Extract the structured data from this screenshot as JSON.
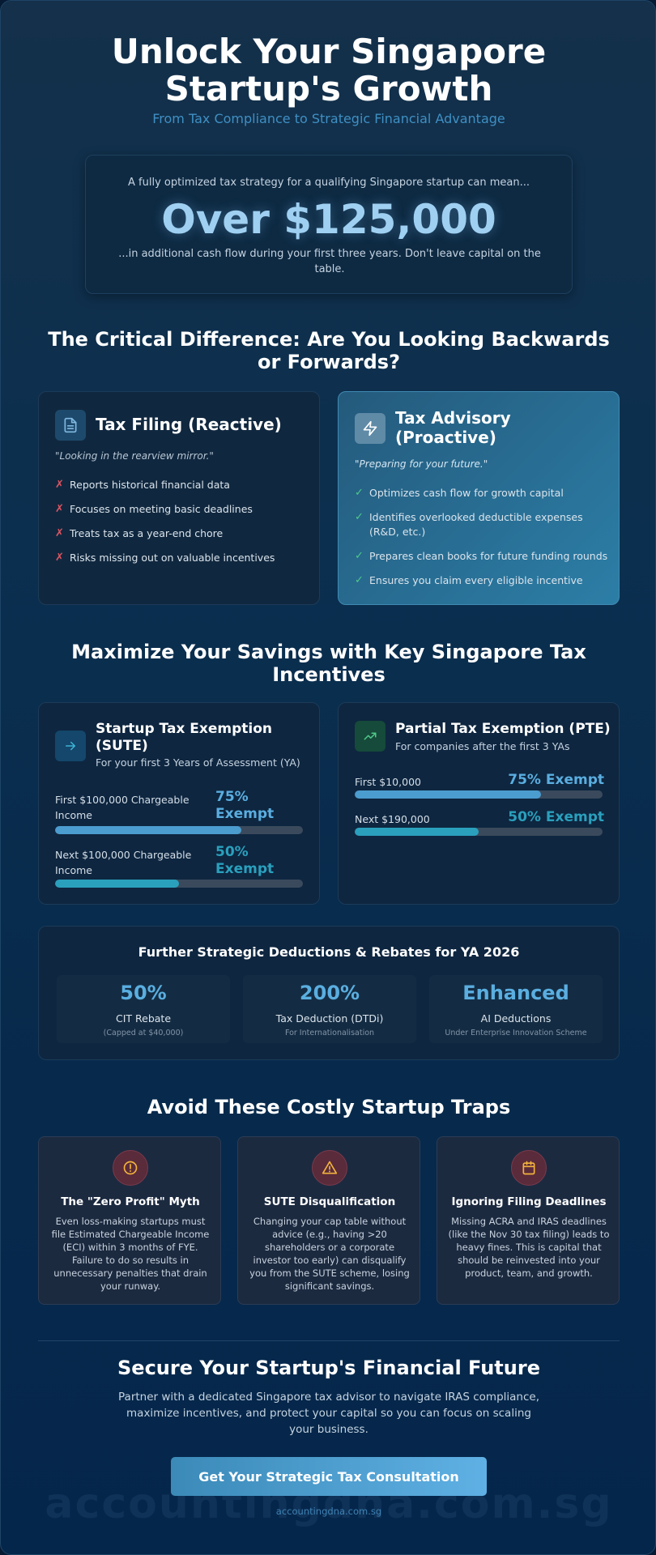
{
  "hero": {
    "title": "Unlock Your Singapore Startup's Growth",
    "subtitle": "From Tax Compliance to Strategic Financial Advantage"
  },
  "stat": {
    "intro": "A fully optimized tax strategy for a qualifying Singapore startup can mean...",
    "value": "Over $125,000",
    "outro": "...in additional cash flow during your first three years. Don't leave capital on the table."
  },
  "comparison": {
    "title": "The Critical Difference: Are You Looking Backwards or Forwards?",
    "filing": {
      "icon": "document-icon",
      "title": "Tax Filing (Reactive)",
      "quote": "\"Looking in the rearview mirror.\"",
      "items": [
        "Reports historical financial data",
        "Focuses on meeting basic deadlines",
        "Treats tax as a year-end chore",
        "Risks missing out on valuable incentives"
      ]
    },
    "advisory": {
      "icon": "lightning-icon",
      "title": "Tax Advisory (Proactive)",
      "quote": "\"Preparing for your future.\"",
      "items": [
        "Optimizes cash flow for growth capital",
        "Identifies overlooked deductible expenses (R&D, etc.)",
        "Prepares clean books for future funding rounds",
        "Ensures you claim every eligible incentive"
      ]
    }
  },
  "incentives": {
    "title": "Maximize Your Savings with Key Singapore Tax Incentives",
    "sute": {
      "icon": "arrow-right-icon",
      "title": "Startup Tax Exemption (SUTE)",
      "subtitle": "For your first 3 Years of Assessment (YA)",
      "rows": [
        {
          "label": "First $100,000 Chargeable Income",
          "value": "75% Exempt",
          "fraction": 0.75
        },
        {
          "label": "Next $100,000 Chargeable Income",
          "value": "50% Exempt",
          "fraction": 0.5
        }
      ]
    },
    "pte": {
      "icon": "trending-up-icon",
      "title": "Partial Tax Exemption (PTE)",
      "subtitle": "For companies after the first 3 YAs",
      "rows": [
        {
          "label": "First $10,000",
          "value": "75% Exempt",
          "fraction": 0.75
        },
        {
          "label": "Next $190,000",
          "value": "50% Exempt",
          "fraction": 0.5
        }
      ]
    }
  },
  "deductions": {
    "title": "Further Strategic Deductions & Rebates for YA 2026",
    "items": [
      {
        "value": "50%",
        "name": "CIT Rebate",
        "note": "(Capped at $40,000)"
      },
      {
        "value": "200%",
        "name": "Tax Deduction (DTDi)",
        "note": "For Internationalisation"
      },
      {
        "value": "Enhanced",
        "name": "AI Deductions",
        "note": "Under Enterprise Innovation Scheme"
      }
    ]
  },
  "traps": {
    "title": "Avoid These Costly Startup Traps",
    "items": [
      {
        "icon": "alert-circle-icon",
        "title": "The \"Zero Profit\" Myth",
        "body": "Even loss-making startups must file Estimated Chargeable Income (ECI) within 3 months of FYE. Failure to do so results in unnecessary penalties that drain your runway."
      },
      {
        "icon": "warning-triangle-icon",
        "title": "SUTE Disqualification",
        "body": "Changing your cap table without advice (e.g., having >20 shareholders or a corporate investor too early) can disqualify you from the SUTE scheme, losing significant savings."
      },
      {
        "icon": "calendar-icon",
        "title": "Ignoring Filing Deadlines",
        "body": "Missing ACRA and IRAS deadlines (like the Nov 30 tax filing) leads to heavy fines. This is capital that should be reinvested into your product, team, and growth."
      }
    ]
  },
  "cta": {
    "title": "Secure Your Startup's Financial Future",
    "text": "Partner with a dedicated Singapore tax advisor to navigate IRAS compliance, maximize incentives, and protect your capital so you can focus on scaling your business.",
    "button": "Get Your Strategic Tax Consultation"
  },
  "watermark": "accountingdna.com.sg",
  "footer": "accountingdna.com.sg",
  "colors": {
    "accent": "#5aaee0",
    "cross": "#e05563",
    "check": "#4fc98a",
    "warning": "#f2b33d"
  }
}
